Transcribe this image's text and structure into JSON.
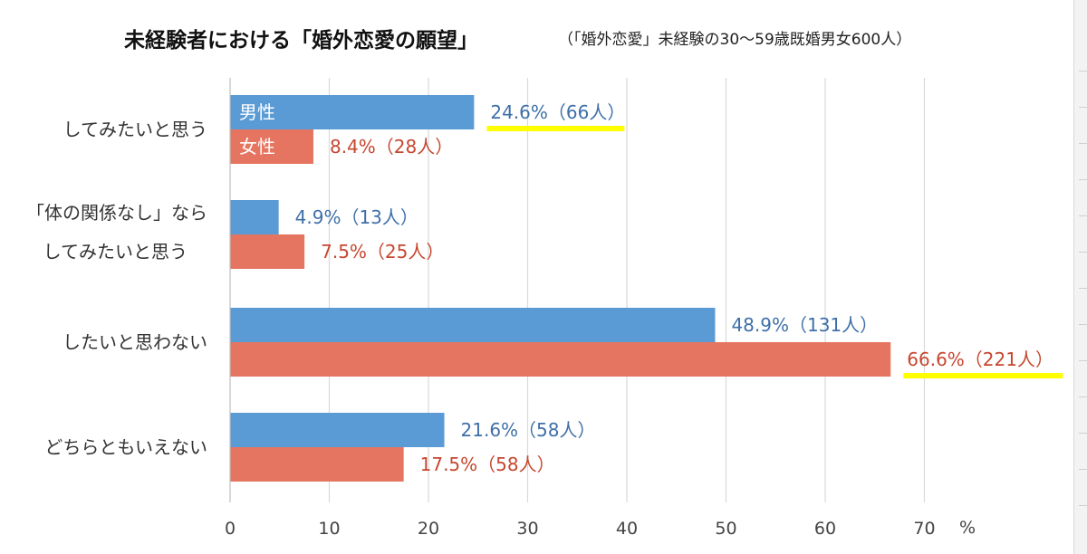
{
  "title": "未経験者における「婚外恋愛の願望」",
  "subtitle": "（「婚外恋愛」未経験の30～59歳既婚男女600人）",
  "colors": {
    "male": "#5b9bd5",
    "female": "#e57560",
    "male_text": "#3e6fa8",
    "female_text": "#c6472f",
    "highlight": "#ffff00",
    "grid": "#d9d9d9"
  },
  "chart_data": {
    "type": "bar",
    "orientation": "horizontal",
    "categories": [
      [
        "してみたいと思う"
      ],
      [
        "「体の関係なし」なら",
        "してみたいと思う"
      ],
      [
        "したいと思わない"
      ],
      [
        "どちらともいえない"
      ]
    ],
    "series": [
      {
        "name": "男性",
        "values": [
          24.6,
          4.9,
          48.9,
          21.6
        ],
        "labels": [
          "24.6%（66人）",
          "4.9%（13人）",
          "48.9%（131人）",
          "21.6%（58人）"
        ]
      },
      {
        "name": "女性",
        "values": [
          8.4,
          7.5,
          66.6,
          17.5
        ],
        "labels": [
          "8.4%（28人）",
          "7.5%（25人）",
          "66.6%（221人）",
          "17.5%（58人）"
        ]
      }
    ],
    "highlighted_labels": [
      {
        "series": 0,
        "category": 0
      },
      {
        "series": 1,
        "category": 2
      }
    ],
    "xlim": [
      0,
      70
    ],
    "x_ticks": [
      0,
      10,
      20,
      30,
      40,
      50,
      60,
      70
    ],
    "x_unit": "%",
    "grid": true,
    "legend": "inside-first-bars"
  }
}
